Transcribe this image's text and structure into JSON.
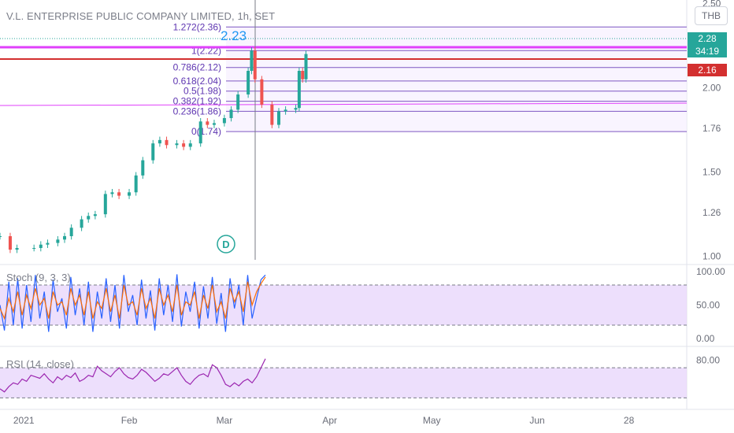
{
  "header": {
    "symbol_title": "V.L. ENTERPRISE PUBLIC COMPANY LIMITED, 1h, SET",
    "currency": "THB"
  },
  "price_badges": {
    "last_price": "2.28",
    "countdown": "34:19",
    "second_price": "2.16"
  },
  "annotations": {
    "event_marker": "D",
    "peak_label": "2.23"
  },
  "colors": {
    "candle_up": "#26a69a",
    "candle_down": "#ef5350",
    "fib_line": "#7e57c2",
    "magenta_line": "#e040fb",
    "red_line": "#d32f2f",
    "stoch_k": "#2962ff",
    "stoch_d": "#ff6d00",
    "rsi_line": "#9c27b0",
    "band_fill": "#e9d7fb",
    "badge_teal": "#26a69a",
    "badge_red": "#d32f2f"
  },
  "chart_data": [
    {
      "type": "candlestick",
      "title": "V.L. ENTERPRISE PUBLIC COMPANY LIMITED, 1h, SET",
      "y_ticks": [
        "2.50",
        "2.00",
        "1.76",
        "1.50",
        "1.26",
        "1.00"
      ],
      "ylim": [
        0.98,
        2.52
      ],
      "x_ticks": [
        "2021",
        "Feb",
        "Mar",
        "Apr",
        "May",
        "Jun",
        "28"
      ],
      "x_tick_dates": [
        "2021-01-01",
        "2021-02-01",
        "2021-03-01",
        "2021-04-01",
        "2021-05-01",
        "2021-06-01",
        "2021-06-28"
      ],
      "xlim": [
        "2020-12-25",
        "2021-07-15"
      ],
      "series": [
        {
          "values": [
            {
              "date": "2020-12-25",
              "close": 1.12
            },
            {
              "date": "2020-12-28",
              "close": 1.04
            },
            {
              "date": "2020-12-30",
              "close": 1.05
            },
            {
              "date": "2021-01-04",
              "close": 1.05
            },
            {
              "date": "2021-01-06",
              "close": 1.07
            },
            {
              "date": "2021-01-08",
              "close": 1.08
            },
            {
              "date": "2021-01-11",
              "close": 1.1
            },
            {
              "date": "2021-01-13",
              "close": 1.12
            },
            {
              "date": "2021-01-15",
              "close": 1.17
            },
            {
              "date": "2021-01-18",
              "close": 1.22
            },
            {
              "date": "2021-01-20",
              "close": 1.24
            },
            {
              "date": "2021-01-22",
              "close": 1.25
            },
            {
              "date": "2021-01-25",
              "close": 1.37
            },
            {
              "date": "2021-01-27",
              "close": 1.38
            },
            {
              "date": "2021-01-29",
              "close": 1.36
            },
            {
              "date": "2021-02-01",
              "close": 1.38
            },
            {
              "date": "2021-02-03",
              "close": 1.48
            },
            {
              "date": "2021-02-05",
              "close": 1.57
            },
            {
              "date": "2021-02-08",
              "close": 1.67
            },
            {
              "date": "2021-02-10",
              "close": 1.69
            },
            {
              "date": "2021-02-12",
              "close": 1.66
            },
            {
              "date": "2021-02-15",
              "close": 1.67
            },
            {
              "date": "2021-02-17",
              "close": 1.65
            },
            {
              "date": "2021-02-19",
              "close": 1.67
            },
            {
              "date": "2021-02-22",
              "close": 1.8
            },
            {
              "date": "2021-02-24",
              "close": 1.78
            },
            {
              "date": "2021-02-26",
              "close": 1.79
            },
            {
              "date": "2021-03-01",
              "close": 1.82
            },
            {
              "date": "2021-03-03",
              "close": 1.87
            },
            {
              "date": "2021-03-05",
              "close": 1.96
            },
            {
              "date": "2021-03-08",
              "close": 2.1
            },
            {
              "date": "2021-03-09",
              "close": 2.22
            },
            {
              "date": "2021-03-10",
              "close": 2.05
            },
            {
              "date": "2021-03-12",
              "close": 1.9
            },
            {
              "date": "2021-03-15",
              "close": 1.78
            },
            {
              "date": "2021-03-17",
              "close": 1.86
            },
            {
              "date": "2021-03-19",
              "close": 1.87
            },
            {
              "date": "2021-03-22",
              "close": 1.88
            },
            {
              "date": "2021-03-23",
              "close": 2.1
            },
            {
              "date": "2021-03-24",
              "close": 2.05
            },
            {
              "date": "2021-03-25",
              "close": 2.2
            }
          ]
        }
      ]
    },
    {
      "type": "line",
      "title": "Stoch (9, 3, 3)",
      "y_ticks": [
        "100.00",
        "50.00",
        "0.00"
      ],
      "ylim": [
        0,
        100
      ],
      "bands": [
        20,
        80
      ],
      "series": [
        {
          "values": [
            50,
            12,
            85,
            20,
            90,
            15,
            80,
            25,
            95,
            30,
            70,
            10,
            88,
            40,
            60,
            15,
            92,
            35,
            75,
            20,
            85,
            10,
            70,
            30,
            90,
            25,
            80,
            15,
            95,
            40,
            65,
            20,
            88,
            30,
            72,
            12,
            90,
            35,
            80,
            25,
            96,
            18,
            70,
            40,
            85,
            15,
            78,
            30,
            92,
            22,
            68,
            10,
            90,
            45,
            80,
            20,
            95,
            30,
            60,
            88,
            95
          ]
        },
        {
          "values": [
            45,
            30,
            60,
            40,
            70,
            35,
            65,
            45,
            75,
            50,
            60,
            30,
            70,
            50,
            55,
            35,
            75,
            50,
            65,
            35,
            70,
            30,
            55,
            45,
            75,
            40,
            65,
            30,
            80,
            50,
            55,
            35,
            75,
            45,
            60,
            30,
            75,
            50,
            65,
            40,
            80,
            35,
            55,
            50,
            70,
            30,
            65,
            45,
            80,
            40,
            55,
            30,
            75,
            55,
            70,
            40,
            85,
            50,
            70,
            82,
            92
          ]
        }
      ]
    },
    {
      "type": "line",
      "title": "RSI (14, close)",
      "y_ticks": [
        "80.00"
      ],
      "ylim": [
        20,
        90
      ],
      "bands": [
        30,
        70
      ],
      "series": [
        {
          "values": [
            42,
            38,
            45,
            50,
            48,
            55,
            52,
            60,
            58,
            56,
            62,
            55,
            50,
            58,
            54,
            60,
            57,
            63,
            52,
            55,
            60,
            58,
            72,
            66,
            62,
            58,
            65,
            70,
            62,
            57,
            55,
            60,
            68,
            64,
            58,
            52,
            56,
            62,
            60,
            65,
            70,
            60,
            52,
            48,
            55,
            60,
            62,
            58,
            74,
            70,
            60,
            48,
            45,
            50,
            46,
            52,
            55,
            50,
            58,
            70,
            82
          ]
        }
      ]
    }
  ],
  "fibonacci": {
    "levels": [
      {
        "label": "1.272(2.36)",
        "price": 2.36
      },
      {
        "label": "1(2.22)",
        "price": 2.22
      },
      {
        "label": "0.786(2.12)",
        "price": 2.12
      },
      {
        "label": "0.618(2.04)",
        "price": 2.04
      },
      {
        "label": "0.5(1.98)",
        "price": 1.98
      },
      {
        "label": "0.382(1.92)",
        "price": 1.92
      },
      {
        "label": "0.236(1.86)",
        "price": 1.86
      },
      {
        "label": "0(1.74)",
        "price": 1.74
      }
    ]
  }
}
